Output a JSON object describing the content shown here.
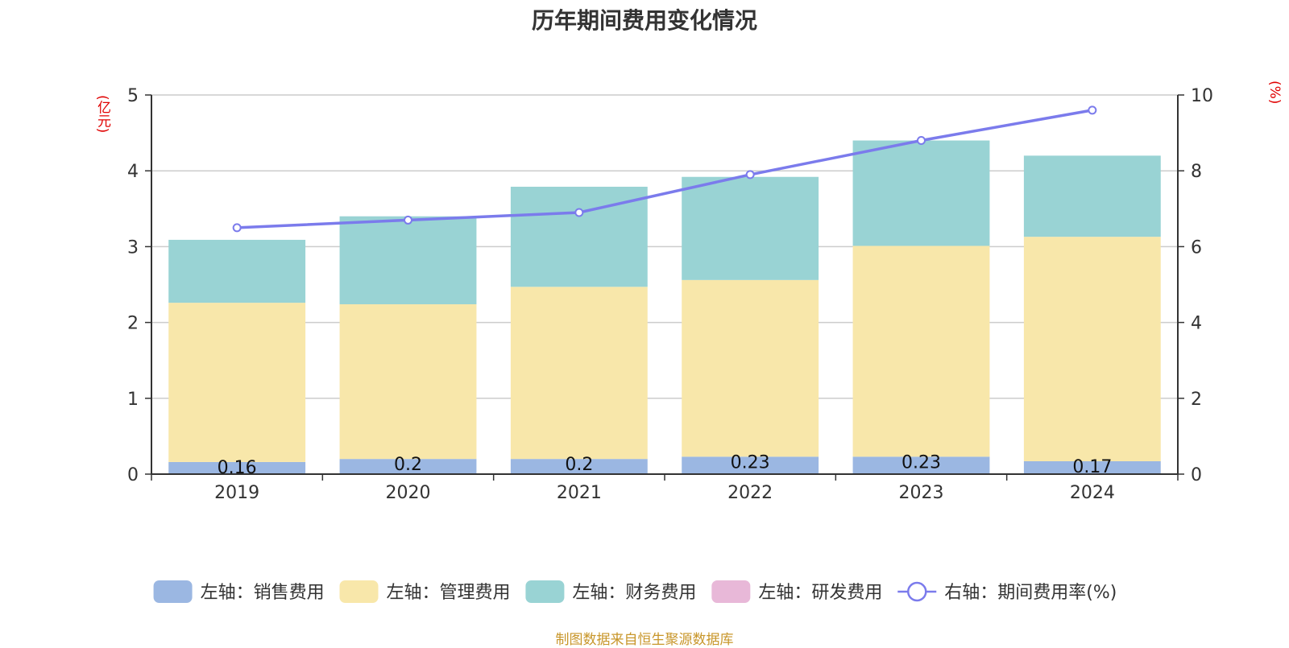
{
  "chart_data": {
    "type": "bar",
    "title": "历年期间费用变化情况",
    "categories": [
      "2019",
      "2020",
      "2021",
      "2022",
      "2023",
      "2024"
    ],
    "left_axis": {
      "unit": "(亿元)",
      "range": [
        0,
        5
      ],
      "ticks": [
        "0",
        "1",
        "2",
        "3",
        "4",
        "5"
      ]
    },
    "right_axis": {
      "unit": "(%)",
      "range": [
        0,
        10
      ],
      "ticks": [
        "0",
        "2",
        "4",
        "6",
        "8",
        "10"
      ]
    },
    "stacked": true,
    "grid": true,
    "legend_position": "bottom",
    "series": [
      {
        "name": "左轴：销售费用",
        "type": "bar",
        "axis": "left",
        "color": "#9bb7e2",
        "values": [
          0.16,
          0.2,
          0.2,
          0.23,
          0.23,
          0.17
        ],
        "labels": [
          "0.16",
          "0.2",
          "0.2",
          "0.23",
          "0.23",
          "0.17"
        ]
      },
      {
        "name": "左轴：管理费用",
        "type": "bar",
        "axis": "left",
        "color": "#f8e7aa",
        "values": [
          2.1,
          2.04,
          2.27,
          2.33,
          2.78,
          2.96
        ]
      },
      {
        "name": "左轴：财务费用",
        "type": "bar",
        "axis": "left",
        "color": "#99d3d4",
        "values": [
          0.83,
          1.16,
          1.32,
          1.36,
          1.39,
          1.07
        ]
      },
      {
        "name": "左轴：研发费用",
        "type": "bar",
        "axis": "left",
        "color": "#e8b8d8",
        "values": [
          0,
          0,
          0,
          0,
          0,
          0
        ]
      },
      {
        "name": "右轴：期间费用率(%)",
        "type": "line",
        "axis": "right",
        "color": "#7b7bec",
        "values": [
          6.5,
          6.7,
          6.9,
          7.9,
          8.8,
          9.6
        ]
      }
    ],
    "source": "制图数据来自恒生聚源数据库"
  }
}
